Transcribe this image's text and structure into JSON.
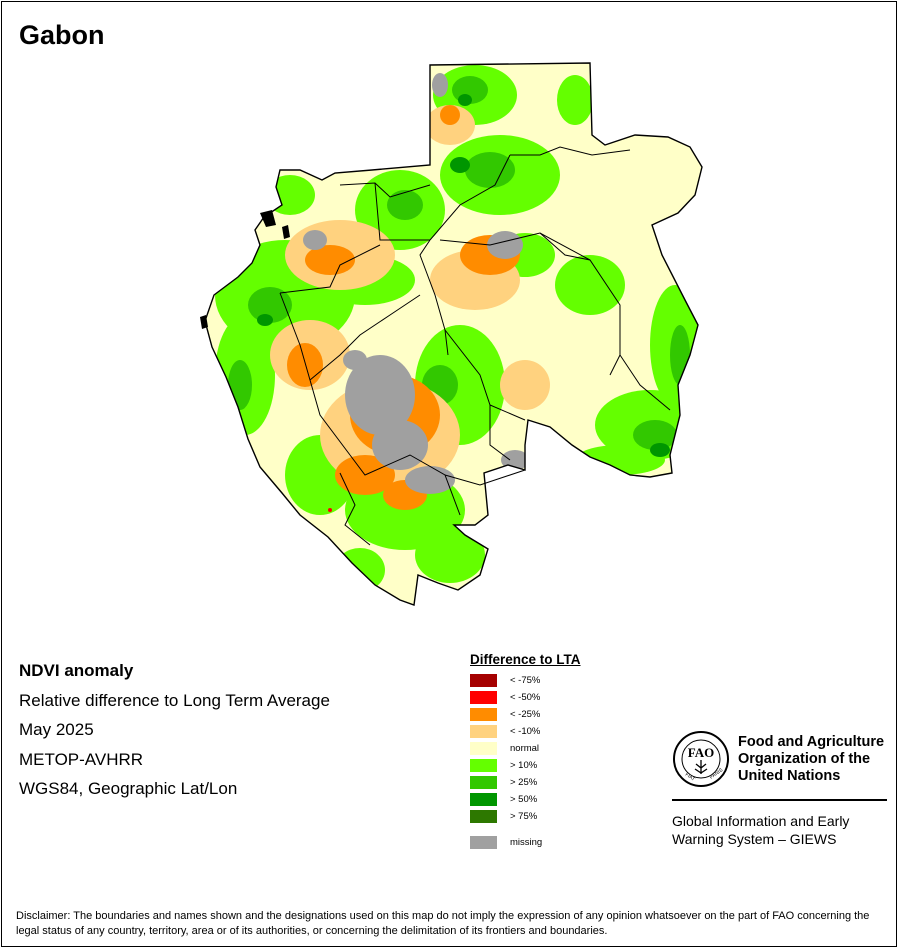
{
  "map": {
    "title": "Gabon"
  },
  "info": {
    "heading": "NDVI anomaly",
    "subtitle": "Relative difference to Long Term Average",
    "date": "May 2025",
    "sensor": "METOP-AVHRR",
    "projection": "WGS84, Geographic Lat/Lon"
  },
  "legend": {
    "title": "Difference to LTA",
    "items": [
      {
        "label": "< -75%",
        "color": "#a50000"
      },
      {
        "label": "< -50%",
        "color": "#ff0000"
      },
      {
        "label": "< -25%",
        "color": "#ff8c00"
      },
      {
        "label": "< -10%",
        "color": "#ffd27f"
      },
      {
        "label": "normal",
        "color": "#ffffc8"
      },
      {
        "label": "> 10%",
        "color": "#64ff00"
      },
      {
        "label": "> 25%",
        "color": "#32c800"
      },
      {
        "label": "> 50%",
        "color": "#009600"
      },
      {
        "label": "> 75%",
        "color": "#2d7800"
      }
    ],
    "missing": {
      "label": "missing",
      "color": "#a0a0a0"
    }
  },
  "fao": {
    "org_line1": "Food and Agriculture",
    "org_line2": "Organization of the",
    "org_line3": "United Nations",
    "giews_line1": "Global Information and Early",
    "giews_line2": "Warning System – GIEWS"
  },
  "disclaimer": "Disclaimer: The boundaries and names shown and the designations used on this map do not imply the expression of any opinion whatsoever on the part of FAO concerning the legal status of any country, territory, area or of its authorities, or concerning the delimitation of its frontiers and boundaries."
}
